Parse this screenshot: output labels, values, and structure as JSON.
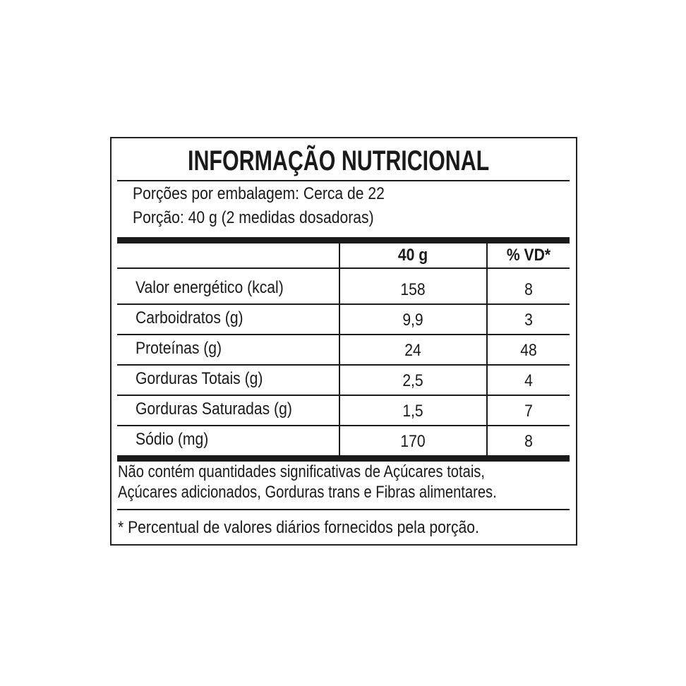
{
  "title": "INFORMAÇÃO NUTRICIONAL",
  "servings_per_package": "Porções por embalagem: Cerca de 22",
  "serving_size": "Porção: 40 g (2 medidas dosadoras)",
  "columns": [
    "",
    "40 g",
    "% VD*"
  ],
  "rows": [
    {
      "label": "Valor energético (kcal)",
      "amount": "158",
      "dv": "8"
    },
    {
      "label": "Carboidratos (g)",
      "amount": "9,9",
      "dv": "3"
    },
    {
      "label": "Proteínas (g)",
      "amount": "24",
      "dv": "48"
    },
    {
      "label": "Gorduras Totais (g)",
      "amount": "2,5",
      "dv": "4"
    },
    {
      "label": "Gorduras Saturadas (g)",
      "amount": "1,5",
      "dv": "7"
    },
    {
      "label": "Sódio (mg)",
      "amount": "170",
      "dv": "8"
    }
  ],
  "footnote_1_line1": "Não contém quantidades significativas de Açúcares totais,",
  "footnote_1_line2": "Açúcares adicionados, Gorduras trans e Fibras alimentares.",
  "footnote_2": "* Percentual de valores diários fornecidos pela porção."
}
